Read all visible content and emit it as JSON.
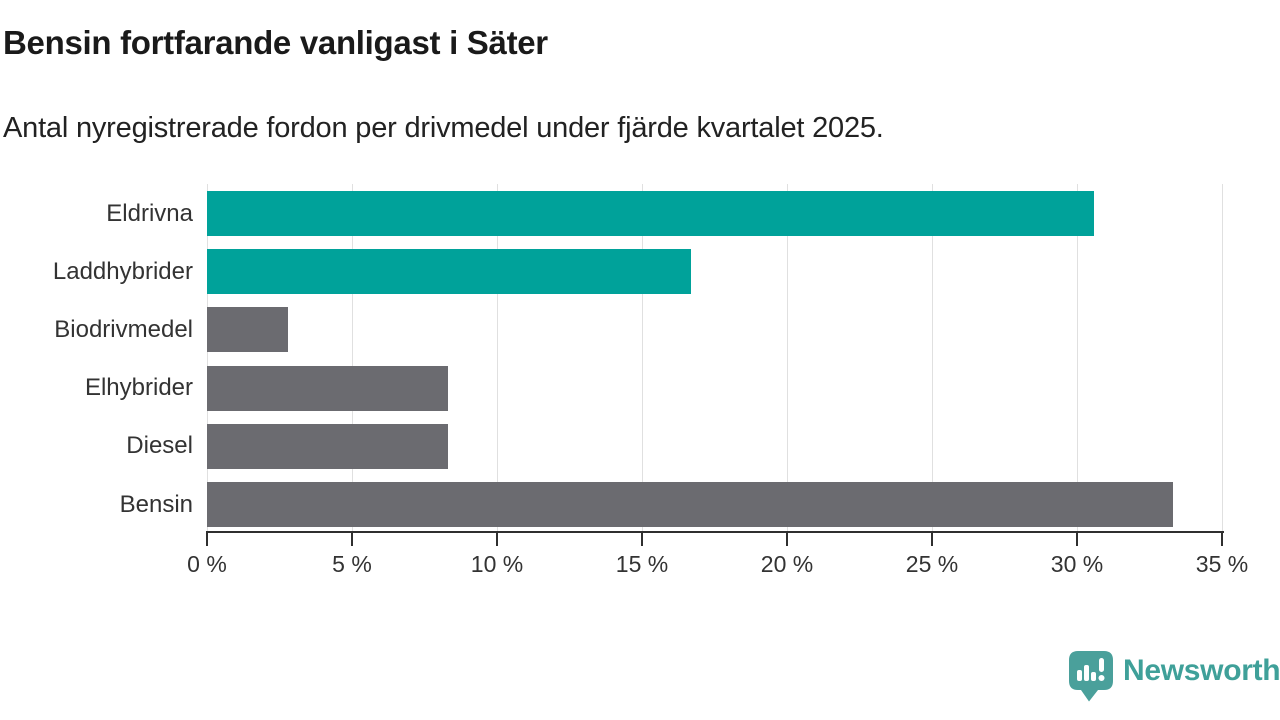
{
  "header": {
    "title": "Bensin fortfarande vanligast i Säter",
    "subtitle": "Antal nyregistrerade fordon per drivmedel under fjärde kvartalet 2025."
  },
  "chart_data": {
    "type": "bar",
    "orientation": "horizontal",
    "title": "Bensin fortfarande vanligast i Säter",
    "subtitle": "Antal nyregistrerade fordon per drivmedel under fjärde kvartalet 2025.",
    "categories": [
      "Eldrivna",
      "Laddhybrider",
      "Biodrivmedel",
      "Elhybrider",
      "Diesel",
      "Bensin"
    ],
    "values": [
      30.6,
      16.7,
      2.8,
      8.3,
      8.3,
      33.3
    ],
    "unit": "%",
    "bar_colors": [
      "#00a29a",
      "#00a29a",
      "#6b6b70",
      "#6b6b70",
      "#6b6b70",
      "#6b6b70"
    ],
    "highlight_color": "#00a29a",
    "default_color": "#6b6b70",
    "xlim": [
      0,
      35
    ],
    "x_ticks": [
      0,
      5,
      10,
      15,
      20,
      25,
      30,
      35
    ],
    "x_tick_labels": [
      "0 %",
      "5 %",
      "10 %",
      "15 %",
      "20 %",
      "25 %",
      "30 %",
      "35 %"
    ],
    "xlabel": "",
    "ylabel": "",
    "grid": "vertical gridlines at each tick",
    "legend": "none"
  },
  "footer": {
    "brand": "Newsworthy",
    "brand_color": "#3fa099",
    "logo_color": "#4aa09b"
  },
  "colors": {
    "background": "#ffffff",
    "title_text": "#1a1a1a",
    "subtitle_text": "#222222",
    "label_text": "#333333",
    "axis": "#2f2f2f",
    "gridline": "#e0e0e0"
  }
}
